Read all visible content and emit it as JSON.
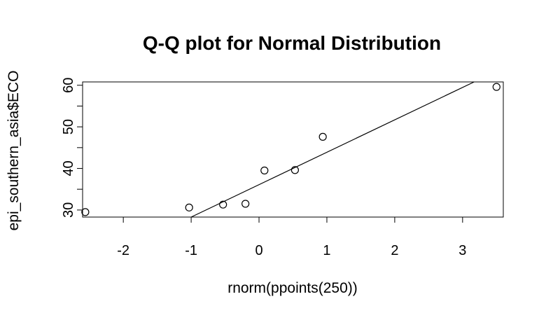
{
  "chart_data": {
    "type": "scatter",
    "title": "Q-Q plot for Normal Distribution",
    "xlabel": "rnorm(ppoints(250))",
    "ylabel": "epi_southern_asia$ECO",
    "xlim": [
      -2.6,
      3.6
    ],
    "ylim": [
      28.3,
      60.8
    ],
    "x_ticks": [
      -2,
      -1,
      0,
      1,
      2,
      3
    ],
    "y_ticks": [
      30,
      40,
      50,
      60
    ],
    "x_tick_labels": [
      "-2",
      "-1",
      "0",
      "1",
      "2",
      "3"
    ],
    "y_tick_labels": [
      "30",
      "40",
      "50",
      "60"
    ],
    "points": [
      {
        "x": -2.56,
        "y": 29.5
      },
      {
        "x": -1.03,
        "y": 30.6
      },
      {
        "x": -0.53,
        "y": 31.3
      },
      {
        "x": -0.2,
        "y": 31.5
      },
      {
        "x": 0.08,
        "y": 39.5
      },
      {
        "x": 0.53,
        "y": 39.6
      },
      {
        "x": 0.94,
        "y": 47.6
      },
      {
        "x": 3.5,
        "y": 59.6
      }
    ],
    "reference_line": {
      "x1": -1.0,
      "y1": 28.3,
      "x2": 3.17,
      "y2": 60.8
    },
    "grid": false,
    "legend": "none",
    "marker": "open-circle",
    "colors": {
      "points": "#000000",
      "line": "#000000",
      "background": "#ffffff"
    }
  }
}
